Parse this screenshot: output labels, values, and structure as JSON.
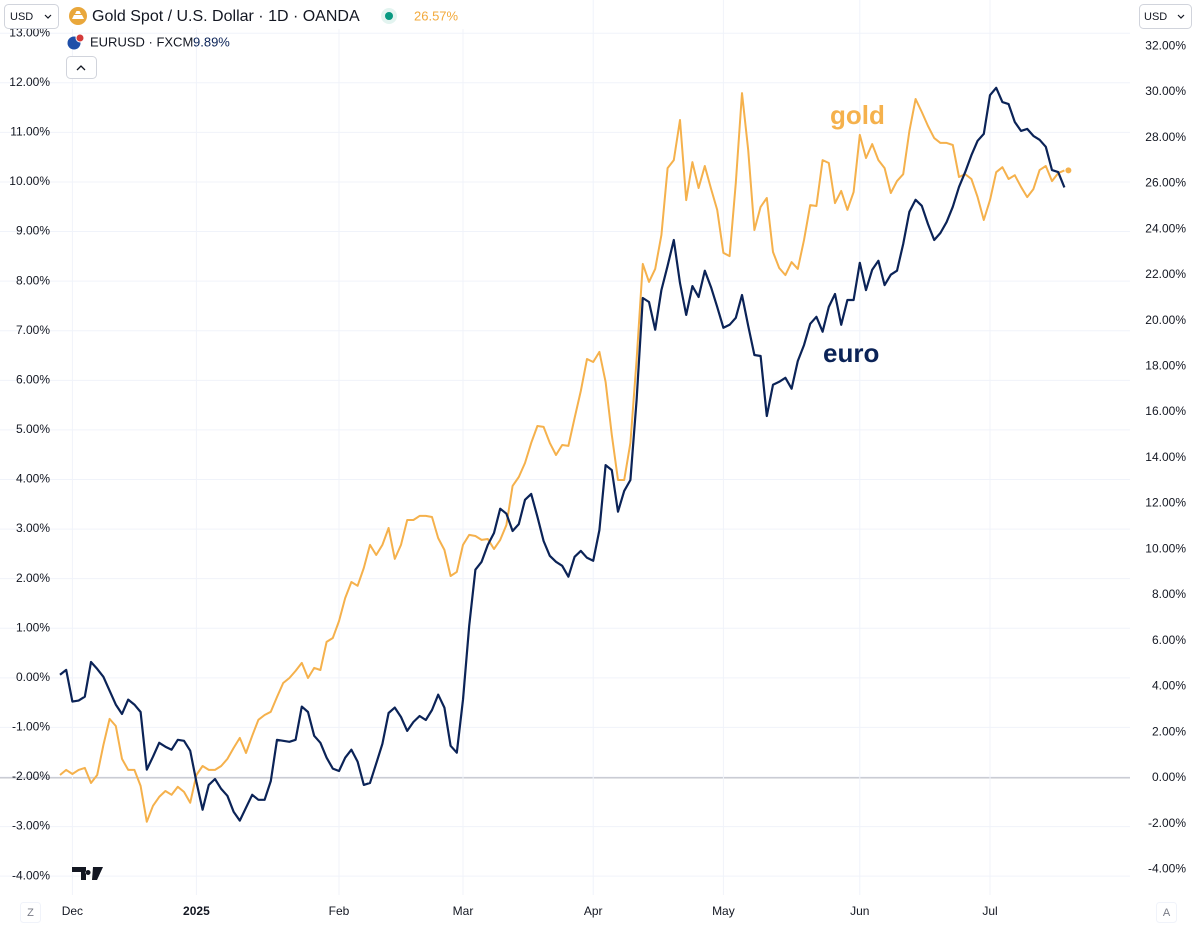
{
  "chart_data": {
    "type": "line",
    "currency": "USD",
    "zoom_button": "Z",
    "auto_button": "A",
    "categories": [
      null,
      null,
      "Dec",
      null,
      null,
      null,
      null,
      null,
      null,
      null,
      null,
      null,
      null,
      null,
      null,
      null,
      null,
      null,
      null,
      null,
      null,
      null,
      "2025",
      null,
      null,
      null,
      null,
      null,
      null,
      null,
      null,
      null,
      null,
      null,
      null,
      null,
      null,
      null,
      null,
      null,
      null,
      null,
      null,
      null,
      null,
      "Feb",
      null,
      null,
      null,
      null,
      null,
      null,
      null,
      null,
      null,
      null,
      null,
      null,
      null,
      null,
      null,
      null,
      null,
      null,
      null,
      "Mar",
      null,
      null,
      null,
      null,
      null,
      null,
      null,
      null,
      null,
      null,
      null,
      null,
      null,
      null,
      null,
      null,
      null,
      null,
      null,
      null,
      "Apr",
      null,
      null,
      null,
      null,
      null,
      null,
      null,
      null,
      null,
      null,
      null,
      null,
      null,
      null,
      null,
      null,
      null,
      null,
      null,
      null,
      "May",
      null,
      null,
      null,
      null,
      null,
      null,
      null,
      null,
      null,
      null,
      null,
      null,
      null,
      null,
      null,
      null,
      null,
      null,
      null,
      null,
      null,
      "Jun",
      null,
      null,
      null,
      null,
      null,
      null,
      null,
      null,
      null,
      null,
      null,
      null,
      null,
      null,
      null,
      null,
      null,
      null,
      null,
      null,
      "Jul",
      null,
      null,
      null,
      null,
      null,
      null,
      null,
      null,
      null,
      null,
      null,
      null
    ],
    "series": [
      {
        "name": "Gold Spot / U.S. Dollar · 1D · OANDA",
        "last_value_label": "26.57%",
        "color": "#f5b14c",
        "axis": "y2",
        "values": [
          0.13,
          0.35,
          0.17,
          0.35,
          0.44,
          -0.22,
          0.13,
          1.44,
          2.58,
          2.27,
          0.83,
          0.35,
          0.35,
          -0.35,
          -1.92,
          -1.22,
          -0.83,
          -0.57,
          -0.74,
          -0.39,
          -0.61,
          -1.09,
          0.13,
          0.52,
          0.35,
          0.35,
          0.52,
          0.83,
          1.31,
          1.75,
          1.09,
          1.84,
          2.54,
          2.75,
          2.89,
          3.54,
          4.15,
          4.37,
          4.68,
          5.03,
          4.37,
          4.81,
          4.72,
          5.95,
          6.12,
          6.86,
          7.87,
          8.57,
          8.4,
          9.18,
          10.19,
          9.75,
          10.19,
          10.93,
          9.58,
          10.19,
          11.28,
          11.28,
          11.46,
          11.46,
          11.41,
          10.49,
          9.97,
          8.83,
          9.01,
          10.19,
          10.63,
          10.58,
          10.41,
          10.45,
          10.01,
          10.41,
          11.06,
          12.77,
          13.16,
          13.77,
          14.65,
          15.39,
          15.35,
          14.65,
          14.12,
          14.56,
          14.52,
          15.74,
          16.92,
          18.32,
          18.19,
          18.63,
          17.32,
          15.0,
          13.03,
          13.03,
          14.65,
          18.28,
          22.48,
          21.69,
          22.26,
          23.74,
          26.67,
          27.02,
          28.77,
          25.27,
          26.93,
          25.8,
          26.76,
          25.77,
          24.84,
          22.96,
          22.82,
          26.02,
          29.95,
          27.46,
          23.96,
          24.97,
          25.36,
          23.0,
          22.3,
          21.99,
          22.56,
          22.26,
          23.52,
          25.05,
          25.01,
          27.02,
          26.89,
          25.14,
          25.67,
          24.84,
          25.62,
          28.12,
          27.11,
          27.72,
          27.02,
          26.67,
          25.58,
          26.1,
          26.4,
          28.29,
          29.69,
          29.12,
          28.51,
          27.98,
          27.77,
          27.77,
          27.68,
          26.28,
          26.4,
          26.19,
          25.4,
          24.4,
          25.27,
          26.49,
          26.71,
          26.19,
          26.36,
          25.85,
          25.4,
          25.75,
          26.58,
          26.76,
          26.1,
          26.45,
          26.57
        ]
      },
      {
        "name": "EURUSD · FXCM",
        "last_value_label": "9.89%",
        "color": "#0b2357",
        "values": [
          0.06,
          0.16,
          -0.48,
          -0.46,
          -0.38,
          0.32,
          0.18,
          0.02,
          -0.26,
          -0.54,
          -0.73,
          -0.44,
          -0.54,
          -0.69,
          -1.85,
          -1.59,
          -1.31,
          -1.39,
          -1.45,
          -1.25,
          -1.27,
          -1.47,
          -2.1,
          -2.66,
          -2.16,
          -2.04,
          -2.24,
          -2.38,
          -2.7,
          -2.88,
          -2.62,
          -2.36,
          -2.46,
          -2.46,
          -2.08,
          -1.25,
          -1.27,
          -1.29,
          -1.25,
          -0.58,
          -0.69,
          -1.17,
          -1.31,
          -1.61,
          -1.83,
          -1.88,
          -1.61,
          -1.45,
          -1.69,
          -2.16,
          -2.12,
          -1.73,
          -1.33,
          -0.71,
          -0.6,
          -0.79,
          -1.07,
          -0.89,
          -0.77,
          -0.85,
          -0.65,
          -0.34,
          -0.6,
          -1.37,
          -1.51,
          -0.44,
          1.05,
          2.18,
          2.34,
          2.68,
          2.92,
          3.41,
          3.31,
          2.96,
          3.1,
          3.59,
          3.71,
          3.25,
          2.76,
          2.46,
          2.34,
          2.26,
          2.04,
          2.44,
          2.56,
          2.42,
          2.36,
          2.98,
          4.29,
          4.19,
          3.35,
          3.77,
          3.99,
          5.6,
          7.66,
          7.58,
          7.02,
          7.82,
          8.31,
          8.83,
          7.96,
          7.32,
          7.9,
          7.68,
          8.21,
          7.88,
          7.48,
          7.06,
          7.12,
          7.26,
          7.72,
          7.1,
          6.51,
          6.49,
          5.28,
          5.91,
          5.97,
          6.05,
          5.83,
          6.39,
          6.71,
          7.14,
          7.28,
          6.98,
          7.48,
          7.74,
          7.12,
          7.62,
          7.62,
          8.37,
          7.82,
          8.23,
          8.41,
          7.92,
          8.13,
          8.21,
          8.75,
          9.4,
          9.64,
          9.52,
          9.15,
          8.83,
          8.97,
          9.19,
          9.5,
          9.9,
          10.2,
          10.54,
          10.83,
          10.97,
          11.75,
          11.9,
          11.61,
          11.57,
          11.21,
          11.03,
          11.07,
          10.93,
          10.85,
          10.71,
          10.24,
          10.2,
          9.89
        ]
      }
    ],
    "annotations": [
      {
        "text": "gold"
      },
      {
        "text": "euro"
      }
    ],
    "ylim": [
      -4.38,
      13.67
    ],
    "yticks": [
      {
        "value": -4,
        "label": "-4.00%"
      },
      {
        "value": -3,
        "label": "-3.00%"
      },
      {
        "value": -2,
        "label": "-2.00%"
      },
      {
        "value": -1,
        "label": "-1.00%"
      },
      {
        "value": 0,
        "label": "0.00%"
      },
      {
        "value": 1,
        "label": "1.00%"
      },
      {
        "value": 2,
        "label": "2.00%"
      },
      {
        "value": 3,
        "label": "3.00%"
      },
      {
        "value": 4,
        "label": "4.00%"
      },
      {
        "value": 5,
        "label": "5.00%"
      },
      {
        "value": 6,
        "label": "6.00%"
      },
      {
        "value": 7,
        "label": "7.00%"
      },
      {
        "value": 8,
        "label": "8.00%"
      },
      {
        "value": 9,
        "label": "9.00%"
      },
      {
        "value": 10,
        "label": "10.00%"
      },
      {
        "value": 11,
        "label": "11.00%"
      },
      {
        "value": 12,
        "label": "12.00%"
      },
      {
        "value": 13,
        "label": "13.00%"
      }
    ],
    "y2lim": [
      -5.12,
      34.02
    ],
    "y2ticks": [
      {
        "value": -4,
        "label": "-4.00%"
      },
      {
        "value": -2,
        "label": "-2.00%"
      },
      {
        "value": 0,
        "label": "0.00%"
      },
      {
        "value": 2,
        "label": "2.00%"
      },
      {
        "value": 4,
        "label": "4.00%"
      },
      {
        "value": 6,
        "label": "6.00%"
      },
      {
        "value": 8,
        "label": "8.00%"
      },
      {
        "value": 10,
        "label": "10.00%"
      },
      {
        "value": 12,
        "label": "12.00%"
      },
      {
        "value": 14,
        "label": "14.00%"
      },
      {
        "value": 16,
        "label": "16.00%"
      },
      {
        "value": 18,
        "label": "18.00%"
      },
      {
        "value": 20,
        "label": "20.00%"
      },
      {
        "value": 22,
        "label": "22.00%"
      },
      {
        "value": 24,
        "label": "24.00%"
      },
      {
        "value": 26,
        "label": "26.00%"
      },
      {
        "value": 28,
        "label": "28.00%"
      },
      {
        "value": 30,
        "label": "30.00%"
      },
      {
        "value": 32,
        "label": "32.00%"
      }
    ],
    "grid": true,
    "zero_line": true
  }
}
